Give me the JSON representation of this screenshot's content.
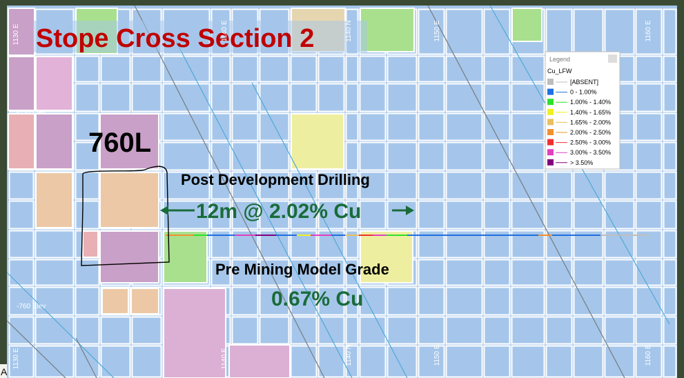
{
  "title": "Stope Cross Section 2",
  "level": "760L",
  "drilling": {
    "heading": "Post Development Drilling",
    "grade": "12m @ 2.02% Cu"
  },
  "model": {
    "heading": "Pre Mining Model Grade",
    "grade": "0.67% Cu"
  },
  "grid_labels": {
    "eastings": [
      "1130 E",
      "1140 E",
      "1150 E",
      "1160 E"
    ],
    "northing": "1140 N",
    "elevations": [
      "-750 Elev",
      "-760 Elev"
    ],
    "corner": "A"
  },
  "legend": {
    "title": "Legend",
    "field": "Cu_LFW",
    "items": [
      {
        "label": "[ABSENT]",
        "color": "#bdbdbd"
      },
      {
        "label": "0 - 1.00%",
        "color": "#1f6fe0"
      },
      {
        "label": "1.00% - 1.40%",
        "color": "#2ee02e"
      },
      {
        "label": "1.40% - 1.65%",
        "color": "#f0f020"
      },
      {
        "label": "1.65% - 2.00%",
        "color": "#e8c060"
      },
      {
        "label": "2.00% - 2.50%",
        "color": "#f09030"
      },
      {
        "label": "2.50% - 3.00%",
        "color": "#f03030"
      },
      {
        "label": "3.00% - 3.50%",
        "color": "#e040c0"
      },
      {
        "label": "> 3.50%",
        "color": "#800080"
      }
    ]
  }
}
